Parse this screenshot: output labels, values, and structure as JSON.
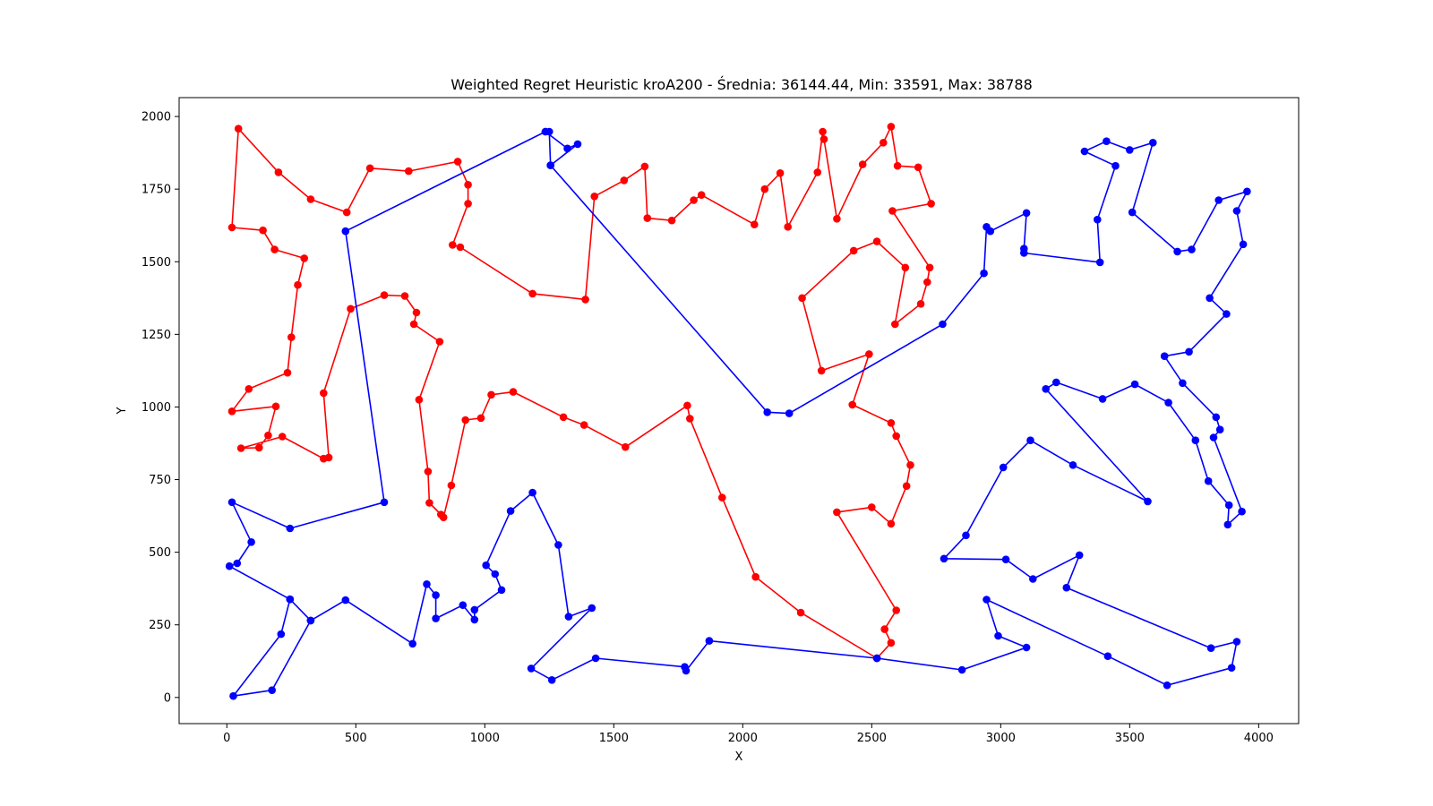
{
  "chart_data": {
    "type": "line",
    "title": "Weighted Regret Heuristic kroA200 - Średnia: 36144.44, Min: 33591, Max: 38788",
    "xlabel": "X",
    "ylabel": "Y",
    "xlim": [
      -185,
      4155
    ],
    "ylim": [
      -90,
      2065
    ],
    "xticks": [
      0,
      500,
      1000,
      1500,
      2000,
      2500,
      3000,
      3500,
      4000
    ],
    "yticks": [
      0,
      250,
      500,
      750,
      1000,
      1250,
      1500,
      1750,
      2000
    ],
    "grid": false,
    "series": [
      {
        "color": "#ff0000",
        "markers": true,
        "closed": false,
        "points": [
          [
            2520,
            135
          ],
          [
            2575,
            188
          ],
          [
            2550,
            235
          ],
          [
            2595,
            300
          ],
          [
            2365,
            638
          ],
          [
            2500,
            655
          ],
          [
            2575,
            598
          ],
          [
            2635,
            728
          ],
          [
            2650,
            800
          ],
          [
            2595,
            900
          ],
          [
            2575,
            945
          ],
          [
            2425,
            1008
          ],
          [
            2490,
            1182
          ],
          [
            2305,
            1125
          ],
          [
            2230,
            1375
          ],
          [
            2430,
            1538
          ],
          [
            2520,
            1570
          ],
          [
            2630,
            1480
          ],
          [
            2590,
            1285
          ],
          [
            2690,
            1355
          ],
          [
            2715,
            1430
          ],
          [
            2725,
            1480
          ],
          [
            2580,
            1675
          ],
          [
            2730,
            1700
          ],
          [
            2680,
            1825
          ],
          [
            2600,
            1830
          ],
          [
            2575,
            1965
          ],
          [
            2545,
            1910
          ],
          [
            2465,
            1835
          ],
          [
            2365,
            1648
          ],
          [
            2315,
            1922
          ],
          [
            2310,
            1948
          ],
          [
            2290,
            1808
          ],
          [
            2175,
            1620
          ],
          [
            2145,
            1805
          ],
          [
            2085,
            1750
          ],
          [
            2045,
            1628
          ],
          [
            1840,
            1730
          ],
          [
            1810,
            1712
          ],
          [
            1725,
            1642
          ],
          [
            1630,
            1650
          ],
          [
            1620,
            1828
          ],
          [
            1540,
            1780
          ],
          [
            1425,
            1725
          ],
          [
            1390,
            1370
          ],
          [
            1185,
            1390
          ],
          [
            905,
            1550
          ],
          [
            875,
            1558
          ],
          [
            935,
            1700
          ],
          [
            935,
            1765
          ],
          [
            895,
            1845
          ],
          [
            705,
            1812
          ],
          [
            555,
            1822
          ],
          [
            465,
            1670
          ],
          [
            325,
            1715
          ],
          [
            200,
            1808
          ],
          [
            45,
            1958
          ],
          [
            20,
            1618
          ],
          [
            140,
            1608
          ],
          [
            185,
            1542
          ],
          [
            300,
            1512
          ],
          [
            275,
            1420
          ],
          [
            250,
            1240
          ],
          [
            235,
            1118
          ],
          [
            85,
            1062
          ],
          [
            20,
            985
          ],
          [
            190,
            1002
          ],
          [
            160,
            902
          ],
          [
            125,
            860
          ],
          [
            55,
            858
          ],
          [
            215,
            898
          ],
          [
            375,
            822
          ],
          [
            395,
            826
          ],
          [
            375,
            1048
          ],
          [
            480,
            1338
          ],
          [
            610,
            1385
          ],
          [
            690,
            1382
          ],
          [
            735,
            1325
          ],
          [
            725,
            1285
          ],
          [
            825,
            1225
          ],
          [
            745,
            1025
          ],
          [
            780,
            778
          ],
          [
            785,
            670
          ],
          [
            830,
            630
          ],
          [
            840,
            620
          ],
          [
            870,
            730
          ],
          [
            925,
            955
          ],
          [
            985,
            962
          ],
          [
            1025,
            1042
          ],
          [
            1110,
            1052
          ],
          [
            1305,
            965
          ],
          [
            1385,
            938
          ],
          [
            1545,
            862
          ],
          [
            1785,
            1005
          ],
          [
            1795,
            960
          ],
          [
            1920,
            688
          ],
          [
            2050,
            415
          ],
          [
            2225,
            292
          ],
          [
            2520,
            135
          ]
        ]
      },
      {
        "color": "#0000ff",
        "markers": true,
        "closed": false,
        "points": [
          [
            2520,
            135
          ],
          [
            2850,
            95
          ],
          [
            3100,
            172
          ],
          [
            2990,
            212
          ],
          [
            2945,
            337
          ],
          [
            3415,
            142
          ],
          [
            3645,
            42
          ],
          [
            3895,
            102
          ],
          [
            3915,
            192
          ],
          [
            3815,
            170
          ],
          [
            3255,
            378
          ],
          [
            3305,
            490
          ],
          [
            3125,
            408
          ],
          [
            3020,
            475
          ],
          [
            2780,
            478
          ],
          [
            2865,
            558
          ],
          [
            3010,
            792
          ],
          [
            3115,
            885
          ],
          [
            3280,
            800
          ],
          [
            3570,
            675
          ],
          [
            3175,
            1062
          ],
          [
            3215,
            1085
          ],
          [
            3395,
            1028
          ],
          [
            3520,
            1078
          ],
          [
            3650,
            1015
          ],
          [
            3755,
            885
          ],
          [
            3805,
            745
          ],
          [
            3885,
            662
          ],
          [
            3880,
            595
          ],
          [
            3935,
            640
          ],
          [
            3825,
            895
          ],
          [
            3850,
            922
          ],
          [
            3835,
            965
          ],
          [
            3705,
            1082
          ],
          [
            3635,
            1175
          ],
          [
            3730,
            1190
          ],
          [
            3875,
            1320
          ],
          [
            3810,
            1375
          ],
          [
            3940,
            1560
          ],
          [
            3915,
            1675
          ],
          [
            3955,
            1742
          ],
          [
            3845,
            1712
          ],
          [
            3740,
            1542
          ],
          [
            3685,
            1535
          ],
          [
            3510,
            1670
          ],
          [
            3590,
            1910
          ],
          [
            3500,
            1885
          ],
          [
            3410,
            1915
          ],
          [
            3325,
            1880
          ],
          [
            3445,
            1830
          ],
          [
            3375,
            1645
          ],
          [
            3385,
            1498
          ],
          [
            3090,
            1530
          ],
          [
            3090,
            1545
          ],
          [
            3100,
            1668
          ],
          [
            2960,
            1605
          ],
          [
            2945,
            1620
          ],
          [
            2935,
            1460
          ],
          [
            2775,
            1285
          ],
          [
            2180,
            978
          ],
          [
            2095,
            982
          ],
          [
            1255,
            1832
          ],
          [
            1250,
            1948
          ],
          [
            1235,
            1948
          ],
          [
            1320,
            1890
          ],
          [
            1360,
            1905
          ],
          [
            1255,
            1832
          ]
        ]
      },
      {
        "color": "#0000ff",
        "markers": true,
        "closed": false,
        "points": [
          [
            1235,
            1948
          ],
          [
            460,
            1605
          ],
          [
            610,
            672
          ],
          [
            245,
            582
          ],
          [
            20,
            672
          ],
          [
            95,
            535
          ],
          [
            40,
            462
          ],
          [
            10,
            452
          ],
          [
            245,
            338
          ],
          [
            325,
            265
          ],
          [
            460,
            335
          ],
          [
            720,
            185
          ],
          [
            775,
            390
          ],
          [
            810,
            352
          ],
          [
            810,
            272
          ],
          [
            915,
            318
          ],
          [
            960,
            268
          ],
          [
            960,
            302
          ],
          [
            1065,
            370
          ],
          [
            1040,
            425
          ],
          [
            1005,
            455
          ],
          [
            1100,
            642
          ],
          [
            1185,
            705
          ],
          [
            1285,
            525
          ],
          [
            1325,
            278
          ],
          [
            1415,
            308
          ],
          [
            1180,
            100
          ],
          [
            1260,
            60
          ],
          [
            1430,
            135
          ],
          [
            1775,
            105
          ],
          [
            1780,
            92
          ],
          [
            1870,
            195
          ],
          [
            2520,
            135
          ]
        ]
      },
      {
        "color": "#0000ff",
        "markers": true,
        "closed": false,
        "points": [
          [
            245,
            338
          ],
          [
            210,
            218
          ],
          [
            25,
            5
          ],
          [
            175,
            25
          ],
          [
            325,
            265
          ]
        ]
      }
    ]
  }
}
